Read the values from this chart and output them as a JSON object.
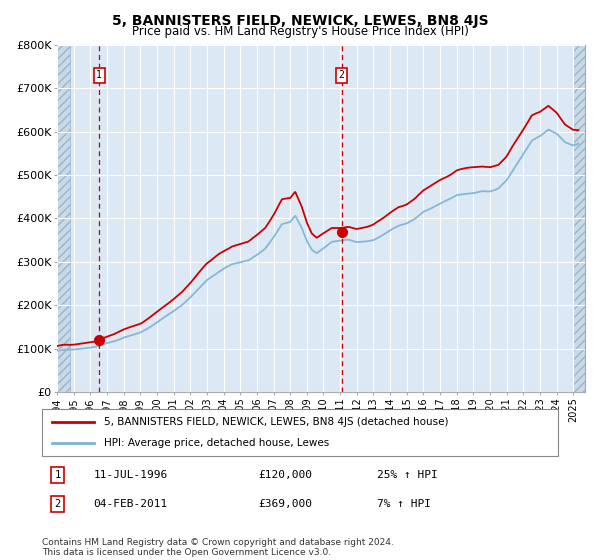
{
  "title": "5, BANNISTERS FIELD, NEWICK, LEWES, BN8 4JS",
  "subtitle": "Price paid vs. HM Land Registry's House Price Index (HPI)",
  "sale1_date": "11-JUL-1996",
  "sale1_price": 120000,
  "sale1_hpi_pct": "25% ↑ HPI",
  "sale1_year": 1996.53,
  "sale2_date": "04-FEB-2011",
  "sale2_price": 369000,
  "sale2_hpi_pct": "7% ↑ HPI",
  "sale2_year": 2011.09,
  "legend_line1": "5, BANNISTERS FIELD, NEWICK, LEWES, BN8 4JS (detached house)",
  "legend_line2": "HPI: Average price, detached house, Lewes",
  "footnote": "Contains HM Land Registry data © Crown copyright and database right 2024.\nThis data is licensed under the Open Government Licence v3.0.",
  "hpi_color": "#7ab3d4",
  "price_color": "#cc0000",
  "bg_color": "#dce9f5",
  "grid_color": "#ffffff",
  "ylim": [
    0,
    800000
  ],
  "xlim_start": 1994.0,
  "xlim_end": 2025.7
}
